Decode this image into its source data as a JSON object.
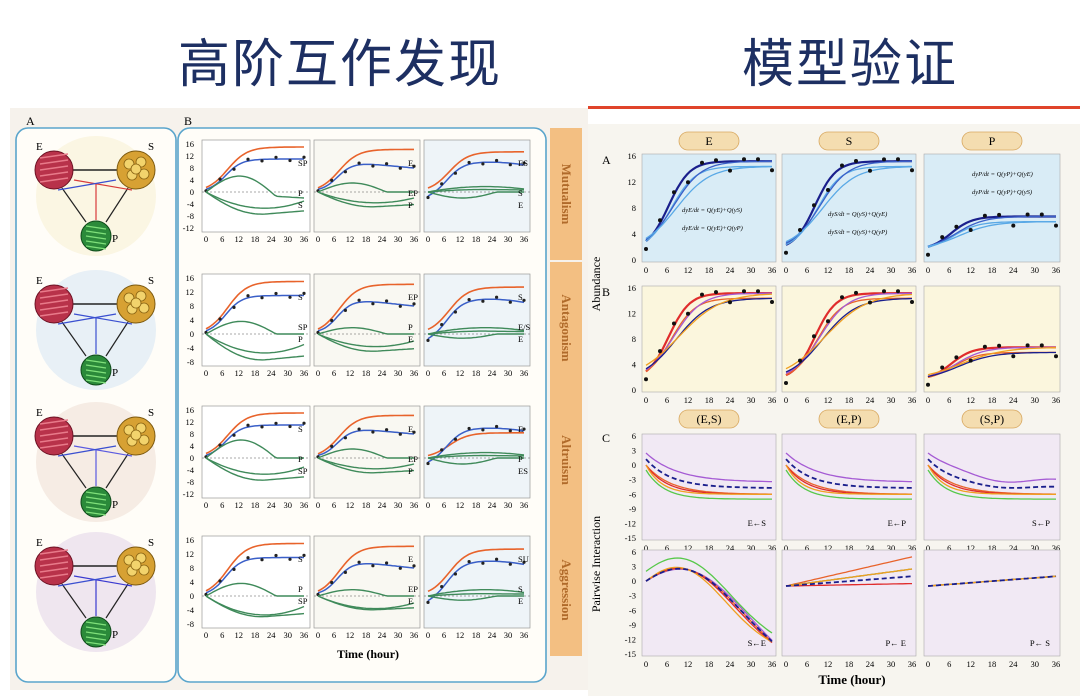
{
  "header": {
    "left_title": "高阶互作发现",
    "right_title": "模型验证"
  },
  "left_figure": {
    "panel_a_label": "A",
    "panel_b_label": "B",
    "node_e": "E",
    "node_s": "S",
    "node_p": "P",
    "interaction_types": [
      "Mutualism",
      "Antagonism",
      "Altruism",
      "Aggression"
    ],
    "row_y_ticks": [
      [
        "16",
        "12",
        "8",
        "4",
        "0",
        "-4",
        "-8",
        "-12"
      ],
      [
        "16",
        "12",
        "8",
        "4",
        "0",
        "-4",
        "-8"
      ],
      [
        "16",
        "12",
        "8",
        "4",
        "0",
        "-4",
        "-8",
        "-12"
      ],
      [
        "16",
        "12",
        "8",
        "4",
        "0",
        "-4",
        "-8"
      ]
    ],
    "x_ticks": [
      "0",
      "6",
      "12",
      "18",
      "24",
      "30",
      "36"
    ],
    "x_label": "Time (hour)",
    "curve_labels": [
      [
        [
          "SP",
          "P",
          "S"
        ],
        [
          "E",
          "EP",
          "P"
        ],
        [
          "ES",
          "S",
          "E"
        ]
      ],
      [
        [
          "S",
          "SP",
          "P"
        ],
        [
          "EP",
          "P",
          "E"
        ],
        [
          "S",
          "E/S",
          "E"
        ]
      ],
      [
        [
          "S",
          "P",
          "SP"
        ],
        [
          "E",
          "EP",
          "P"
        ],
        [
          "E",
          "P",
          "ES"
        ]
      ],
      [
        [
          "S",
          "P",
          "SP"
        ],
        [
          "E",
          "EP",
          "E"
        ],
        [
          "SU",
          "S",
          "E"
        ]
      ]
    ]
  },
  "right_figure": {
    "panel_a_label": "A",
    "panel_b_label": "B",
    "panel_c_label": "C",
    "column_tags_ab": [
      "E",
      "S",
      "P"
    ],
    "column_tags_c": [
      "(E,S)",
      "(E,P)",
      "(S,P)"
    ],
    "abundance_ticks": [
      "16",
      "12",
      "8",
      "4",
      "0"
    ],
    "pairwise_ticks_top": [
      "6",
      "3",
      "0",
      "-3",
      "-6",
      "-9",
      "-12",
      "-15"
    ],
    "pairwise_ticks_bottom": [
      "6",
      "3",
      "0",
      "-3",
      "-6",
      "-9",
      "-12",
      "-15"
    ],
    "x_ticks": [
      "0",
      "6",
      "12",
      "18",
      "24",
      "30",
      "36"
    ],
    "y_label_ab": "Abundance",
    "y_label_c": "Pairwise Interaction",
    "x_label": "Time (hour)",
    "c_row1_labels": [
      "E←S",
      "E←P",
      "S←P"
    ],
    "c_row2_labels": [
      "S←E",
      "P← E",
      "P← S"
    ],
    "colors": {
      "orange": "#e8632b",
      "blue": "#3a5fc8",
      "green": "#3f8a5a",
      "dark_blue": "#1a1f8c",
      "light_blue": "#5aa9e6",
      "purple": "#a55bd4",
      "red": "#e02c2c",
      "yellow_orange": "#f0a020",
      "lime": "#57c84a"
    }
  }
}
